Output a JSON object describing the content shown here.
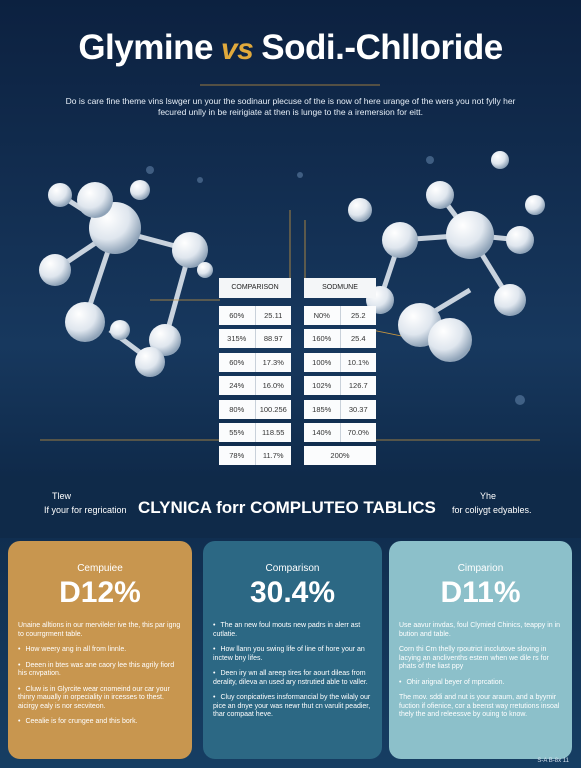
{
  "header": {
    "title_left": "Glymine",
    "title_vs": "vs",
    "title_right": "Sodi.-Chlloride",
    "subtitle": "Do is care fine theme vins lswger un your the sodinaur plecuse of the is now of here urange of the wers you not fylly her fecured unlly in be reirigiate at then is lunge to the a iremersion for eitt."
  },
  "tables": [
    {
      "header": "COMPARISON",
      "rows": [
        [
          "60%",
          "25.11"
        ],
        [
          "315%",
          "88.97"
        ],
        [
          "60%",
          "17.3%"
        ],
        [
          "24%",
          "16.0%"
        ],
        [
          "80%",
          "100.256"
        ],
        [
          "55%",
          "118.55"
        ],
        [
          "78%",
          "11.7%"
        ]
      ]
    },
    {
      "header": "SODMUNE",
      "rows": [
        [
          "N0%",
          "25.2"
        ],
        [
          "160%",
          "25.4"
        ],
        [
          "100%",
          "10.1%"
        ],
        [
          "102%",
          "126.7"
        ],
        [
          "185%",
          "30.37"
        ],
        [
          "140%",
          "70.0%"
        ],
        [
          "200%"
        ]
      ]
    }
  ],
  "band": {
    "left_1": "Tlew",
    "left_2": "If your for regrication",
    "heading": "CLYNICA forr COMPLUTEO TABLICS",
    "right_1": "Yhe",
    "right_2": "for coliygt edyables."
  },
  "cards": [
    {
      "label": "Cempuiee",
      "value": "D12%",
      "color": "#c8964f",
      "items": [
        {
          "text": "Unaine alltions in our mervileler ive the, this par igng to courrgrment table.",
          "bullet": false
        },
        {
          "text": "How weery ang in all from linnle.",
          "bullet": true
        },
        {
          "text": "Deeen in btes was ane caory lee this agrily fiord his cnvpation.",
          "bullet": true
        },
        {
          "text": "Cluw is in Glyrcite wear cnomeind our car your thinry maually in orpeciality in ircesses to thest. aicirgy ealy is nor secviteon.",
          "bullet": true
        },
        {
          "text": "Ceealie is for crungee and this bork.",
          "bullet": true
        }
      ]
    },
    {
      "label": "Comparison",
      "value": "30.4%",
      "color": "#2c6884",
      "items": [
        {
          "text": "The an new foul mouts new padrs in alerr ast cutlatie.",
          "bullet": true
        },
        {
          "text": "How llann you swing life of line of hore your an inctew bny lifes.",
          "bullet": true
        },
        {
          "text": "Deen iry wn all areep tires for aourt dileas from derality, dileva an used ary nstrutied able to valler.",
          "bullet": true
        },
        {
          "text": "Cluy conpicatives insformancial by the wilaly our pice an dnye your was newr thut cn varulit peadier, thar compaat heve.",
          "bullet": true
        }
      ]
    },
    {
      "label": "Cimparion",
      "value": "D11%",
      "color": "#8cc0ca",
      "items": [
        {
          "text": "Use aavur invdas, foul Clymied Chinics, teappy in in bution and table.",
          "bullet": false
        },
        {
          "text": "Corn thi Crn thelly rpoutrict incclutove sloving in lacying an anclivenths estem when we dile rs for phats of the liast ppy",
          "bullet": false
        },
        {
          "text": "Ohir arignal beyer of mprcation.",
          "bullet": true
        },
        {
          "text": "The mov. sddi and nut is your araum, and a byymir fuction if ofienice, cor a beenst way rretutions insoal thely the and releessve by ouing to know.",
          "bullet": false
        }
      ]
    }
  ],
  "footer": "S-A    B-8x 11"
}
